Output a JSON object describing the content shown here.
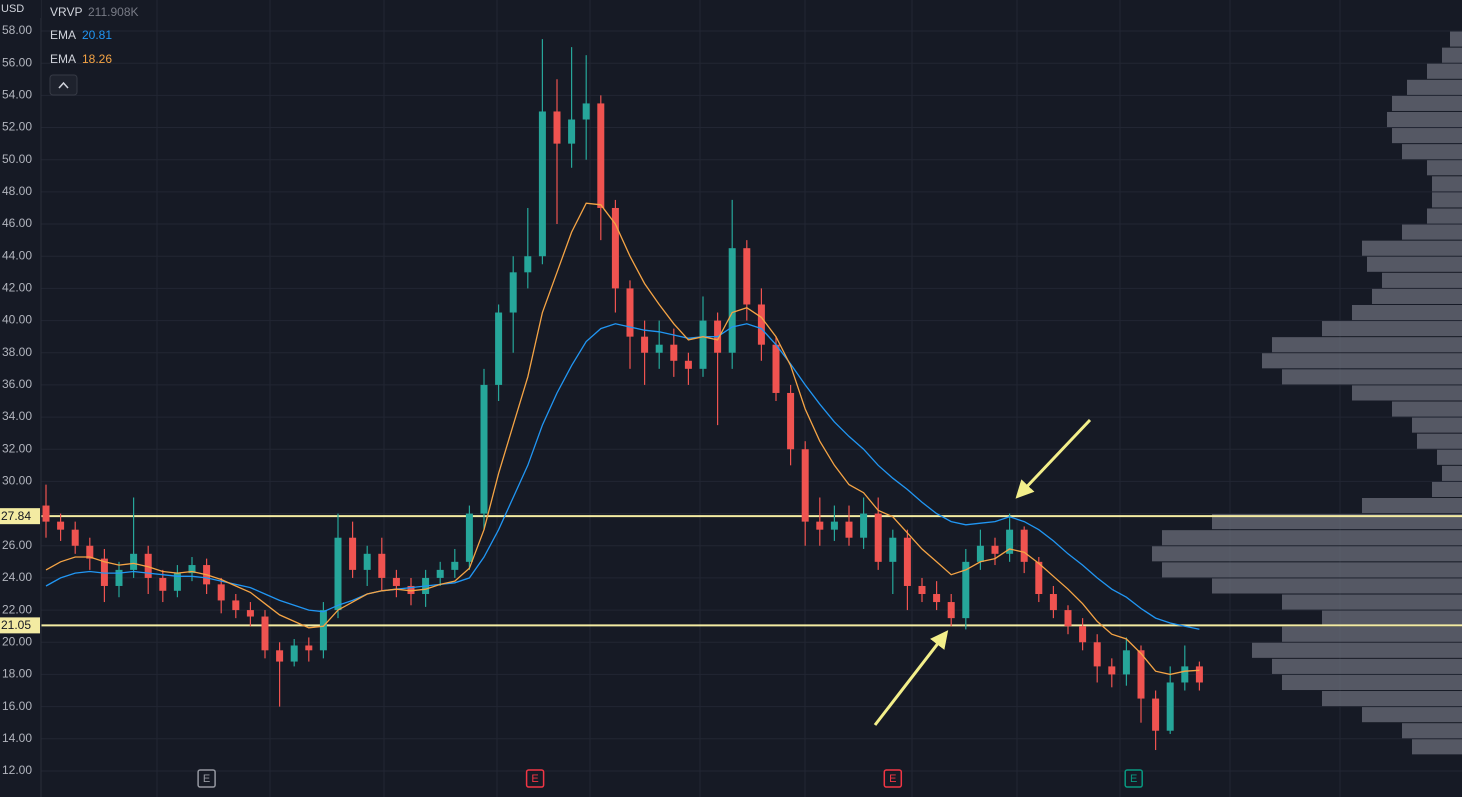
{
  "chart_data": {
    "type": "candlestick",
    "currency": "USD",
    "indicator": {
      "name": "VRVP",
      "value": "211.908K"
    },
    "ylim": [
      10.38,
      59.93
    ],
    "yticks": [
      {
        "value": 58,
        "label": "58.00"
      },
      {
        "value": 56,
        "label": "56.00"
      },
      {
        "value": 54,
        "label": "54.00"
      },
      {
        "value": 52,
        "label": "52.00"
      },
      {
        "value": 50,
        "label": "50.00"
      },
      {
        "value": 48,
        "label": "48.00"
      },
      {
        "value": 46,
        "label": "46.00"
      },
      {
        "value": 44,
        "label": "44.00"
      },
      {
        "value": 42,
        "label": "42.00"
      },
      {
        "value": 40,
        "label": "40.00"
      },
      {
        "value": 38,
        "label": "38.00"
      },
      {
        "value": 36,
        "label": "36.00"
      },
      {
        "value": 34,
        "label": "34.00"
      },
      {
        "value": 32,
        "label": "32.00"
      },
      {
        "value": 30,
        "label": "30.00"
      },
      {
        "value": 28,
        "label": "28.00"
      },
      {
        "value": 26,
        "label": "26.00"
      },
      {
        "value": 24,
        "label": "24.00"
      },
      {
        "value": 22,
        "label": "22.00"
      },
      {
        "value": 20,
        "label": "20.00"
      },
      {
        "value": 18,
        "label": "18.00"
      },
      {
        "value": 16,
        "label": "16.00"
      },
      {
        "value": 14,
        "label": "14.00"
      },
      {
        "value": 12,
        "label": "12.00"
      }
    ],
    "grid": true,
    "up_color": "#26a69a",
    "down_color": "#ef5350",
    "open": [
      28.5,
      27.5,
      27.0,
      26.0,
      25.2,
      23.5,
      24.5,
      25.5,
      24.0,
      23.2,
      24.3,
      24.8,
      23.6,
      22.6,
      22.0,
      21.6,
      19.5,
      18.8,
      19.8,
      19.5,
      22.0,
      26.5,
      24.5,
      25.5,
      24.0,
      23.5,
      23.0,
      24.0,
      24.5,
      25.0,
      28.0,
      36.0,
      40.5,
      43.0,
      44.0,
      53.0,
      51.0,
      52.5,
      53.5,
      47.0,
      42.0,
      39.0,
      38.0,
      38.5,
      37.5,
      37.0,
      40.0,
      38.0,
      44.5,
      41.0,
      38.5,
      35.5,
      32.0,
      27.5,
      27.0,
      27.5,
      26.5,
      28.0,
      25.0,
      26.5,
      23.5,
      23.0,
      22.5,
      21.5,
      25.0,
      26.0,
      25.5,
      27.0,
      25.0,
      23.0,
      22.0,
      21.0,
      20.0,
      18.5,
      18.0,
      19.5,
      16.5,
      14.5,
      17.5,
      18.5
    ],
    "high": [
      29.8,
      28.0,
      27.5,
      26.5,
      25.8,
      25.0,
      29.0,
      26.0,
      24.5,
      24.8,
      25.3,
      25.2,
      24.0,
      23.0,
      22.5,
      22.0,
      20.0,
      20.2,
      20.3,
      22.5,
      28.0,
      27.5,
      26.0,
      26.5,
      24.5,
      24.0,
      24.5,
      25.0,
      25.8,
      28.5,
      37.0,
      41.0,
      44.0,
      47.0,
      57.5,
      55.0,
      57.0,
      56.5,
      54.0,
      47.5,
      42.5,
      40.0,
      40.0,
      39.5,
      38.0,
      41.5,
      40.5,
      47.5,
      45.0,
      42.0,
      39.0,
      36.0,
      32.5,
      29.0,
      28.5,
      28.5,
      29.0,
      29.0,
      27.0,
      27.0,
      24.0,
      23.8,
      23.0,
      25.8,
      27.0,
      26.5,
      28.0,
      27.2,
      25.3,
      23.5,
      22.3,
      21.5,
      20.5,
      19.0,
      20.3,
      19.8,
      17.0,
      18.5,
      19.8,
      18.8
    ],
    "low": [
      26.5,
      26.3,
      25.5,
      24.5,
      22.5,
      22.8,
      24.0,
      23.0,
      22.5,
      22.8,
      23.8,
      23.0,
      21.8,
      21.5,
      21.0,
      19.0,
      16.0,
      18.5,
      18.8,
      19.0,
      21.5,
      24.0,
      23.5,
      23.2,
      22.8,
      22.3,
      22.2,
      23.5,
      24.0,
      24.5,
      27.0,
      35.0,
      38.0,
      42.0,
      43.5,
      46.0,
      49.5,
      50.0,
      45.0,
      40.5,
      37.0,
      36.0,
      37.0,
      36.5,
      36.0,
      36.5,
      33.5,
      37.0,
      40.0,
      37.5,
      35.0,
      31.0,
      26.0,
      26.0,
      26.3,
      26.0,
      25.8,
      24.5,
      23.0,
      22.0,
      22.5,
      22.0,
      21.0,
      20.8,
      24.5,
      24.8,
      25.0,
      24.3,
      22.5,
      21.5,
      20.5,
      19.5,
      17.5,
      17.2,
      17.3,
      15.0,
      13.3,
      14.3,
      17.0,
      17.0
    ],
    "close": [
      27.5,
      27.0,
      26.0,
      25.2,
      23.5,
      24.5,
      25.5,
      24.0,
      23.2,
      24.3,
      24.8,
      23.6,
      22.6,
      22.0,
      21.6,
      19.5,
      18.8,
      19.8,
      19.5,
      22.0,
      26.5,
      24.5,
      25.5,
      24.0,
      23.5,
      23.0,
      24.0,
      24.5,
      25.0,
      28.0,
      36.0,
      40.5,
      43.0,
      44.0,
      53.0,
      51.0,
      52.5,
      53.5,
      47.0,
      42.0,
      39.0,
      38.0,
      38.5,
      37.5,
      37.0,
      40.0,
      38.0,
      44.5,
      41.0,
      38.5,
      35.5,
      32.0,
      27.5,
      27.0,
      27.5,
      26.5,
      28.0,
      25.0,
      26.5,
      23.5,
      23.0,
      22.5,
      21.5,
      25.0,
      26.0,
      25.5,
      27.0,
      25.0,
      23.0,
      22.0,
      21.0,
      20.0,
      18.5,
      18.0,
      19.5,
      16.5,
      14.5,
      17.5,
      18.5,
      17.5
    ],
    "series": [
      {
        "name": "EMA",
        "color": "#2196f3",
        "legend_value": 20.81,
        "values": [
          23.5,
          24.0,
          24.3,
          24.4,
          24.3,
          24.3,
          24.4,
          24.3,
          24.2,
          24.1,
          24.1,
          24.0,
          23.8,
          23.6,
          23.4,
          23.0,
          22.6,
          22.3,
          22.0,
          21.9,
          22.3,
          22.6,
          23.0,
          23.2,
          23.3,
          23.4,
          23.5,
          23.6,
          23.7,
          24.0,
          25.3,
          27.0,
          29.0,
          31.0,
          33.5,
          35.5,
          37.2,
          38.7,
          39.5,
          39.8,
          39.6,
          39.4,
          39.3,
          39.1,
          38.9,
          39.0,
          39.0,
          39.6,
          39.8,
          39.5,
          38.5,
          37.3,
          36.0,
          34.8,
          33.7,
          32.8,
          32.0,
          31.0,
          30.2,
          29.5,
          28.7,
          28.0,
          27.5,
          27.3,
          27.4,
          27.5,
          27.8,
          27.5,
          27.0,
          26.3,
          25.5,
          24.8,
          24.0,
          23.3,
          22.8,
          22.1,
          21.5,
          21.2,
          21.0,
          20.81
        ]
      },
      {
        "name": "EMA",
        "color": "#f5a445",
        "legend_value": 18.26,
        "values": [
          24.5,
          25.0,
          25.3,
          25.3,
          25.0,
          24.8,
          24.9,
          24.7,
          24.4,
          24.3,
          24.4,
          24.2,
          23.9,
          23.5,
          23.1,
          22.4,
          21.7,
          21.3,
          20.9,
          21.0,
          22.0,
          22.5,
          23.0,
          23.2,
          23.3,
          23.2,
          23.3,
          23.6,
          23.8,
          24.6,
          27.0,
          30.5,
          33.5,
          36.5,
          40.5,
          43.0,
          45.5,
          47.3,
          47.2,
          46.0,
          44.0,
          42.3,
          41.0,
          39.8,
          38.8,
          39.0,
          38.8,
          40.5,
          40.8,
          40.2,
          39.0,
          37.2,
          34.5,
          32.5,
          31.0,
          29.8,
          29.3,
          28.2,
          27.8,
          26.8,
          25.8,
          25.0,
          24.2,
          24.5,
          25.0,
          25.2,
          25.8,
          25.6,
          24.9,
          24.1,
          23.3,
          22.4,
          21.3,
          20.5,
          20.2,
          19.3,
          18.2,
          18.0,
          18.2,
          18.26
        ]
      }
    ],
    "levels": [
      27.84,
      21.05
    ],
    "level_color": "#f3eba2",
    "volume_profile": {
      "color": "#6b6e79",
      "xlim": [
        0,
        400
      ],
      "bins": [
        13,
        14,
        15,
        16,
        17,
        18,
        19,
        20,
        21,
        22,
        23,
        24,
        25,
        26,
        27,
        28,
        29,
        30,
        31,
        32,
        33,
        34,
        35,
        36,
        37,
        38,
        39,
        40,
        41,
        42,
        43,
        44,
        45,
        46,
        47,
        48,
        49,
        50,
        51,
        52,
        53,
        54,
        55,
        56,
        57,
        58
      ],
      "values": [
        50,
        60,
        100,
        140,
        180,
        190,
        210,
        180,
        140,
        180,
        250,
        300,
        310,
        300,
        250,
        100,
        30,
        20,
        25,
        45,
        50,
        70,
        110,
        180,
        200,
        190,
        140,
        110,
        90,
        80,
        95,
        100,
        60,
        35,
        30,
        30,
        35,
        60,
        70,
        75,
        70,
        55,
        35,
        20,
        12
      ]
    },
    "events": {
      "labels": [
        "E",
        "E",
        "E",
        "E"
      ],
      "x": [
        11,
        33.5,
        58,
        74.5
      ],
      "colors": [
        "#9598a1",
        "#f23645",
        "#f23645",
        "#089981"
      ]
    }
  }
}
